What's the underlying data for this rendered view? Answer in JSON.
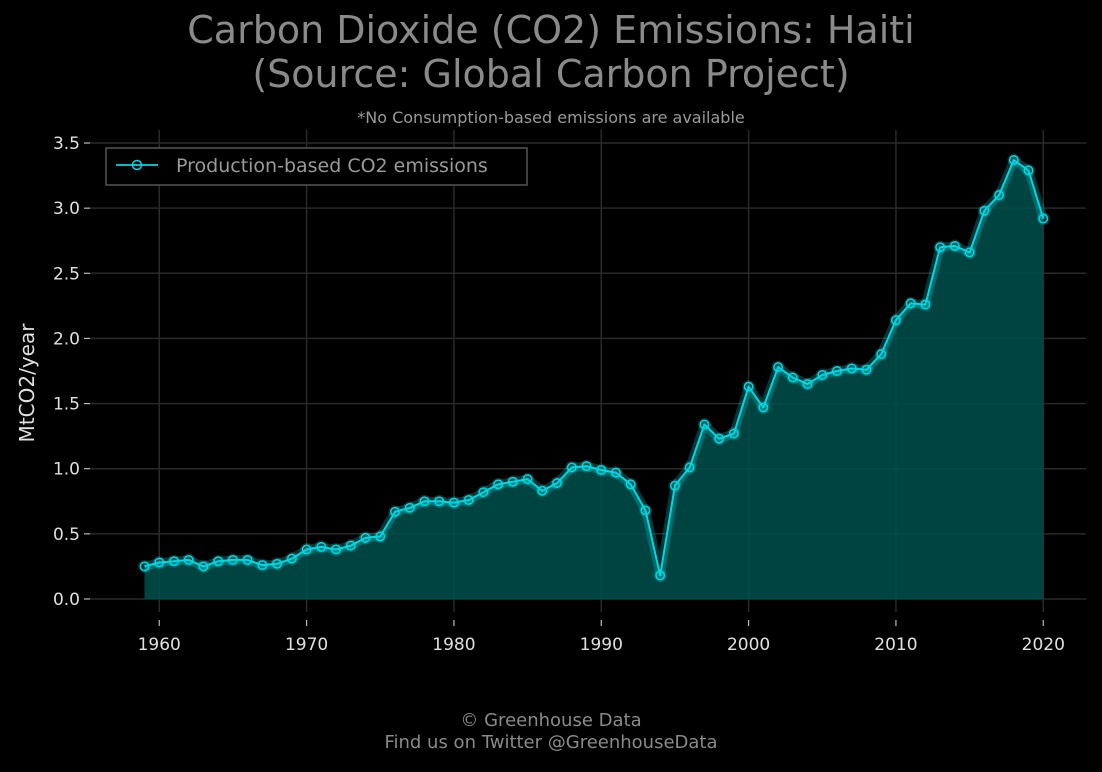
{
  "chart_data": {
    "type": "area",
    "title_line1": "Carbon Dioxide (CO2) Emissions: Haiti",
    "title_line2": "(Source: Global Carbon Project)",
    "subtitle": "*No Consumption-based emissions are available",
    "xlabel": "",
    "ylabel": "MtCO2/year",
    "xlim": [
      1955.3,
      2022.9
    ],
    "ylim": [
      -0.1,
      3.6
    ],
    "xticks": [
      1960,
      1970,
      1980,
      1990,
      2000,
      2010,
      2020
    ],
    "xtick_labels": [
      "1960",
      "1970",
      "1980",
      "1990",
      "2000",
      "2010",
      "2020"
    ],
    "yticks": [
      0.0,
      0.5,
      1.0,
      1.5,
      2.0,
      2.5,
      3.0,
      3.5
    ],
    "ytick_labels": [
      "0.0",
      "0.5",
      "1.0",
      "1.5",
      "2.0",
      "2.5",
      "3.0",
      "3.5"
    ],
    "grid": true,
    "legend_position": "top-left",
    "colors": {
      "line": "#00d8e0",
      "fill": "#00504e",
      "grid": "#2a2a2a",
      "background": "#000000"
    },
    "series": [
      {
        "name": "Production-based CO2 emissions",
        "x": [
          1959,
          1960,
          1961,
          1962,
          1963,
          1964,
          1965,
          1966,
          1967,
          1968,
          1969,
          1970,
          1971,
          1972,
          1973,
          1974,
          1975,
          1976,
          1977,
          1978,
          1979,
          1980,
          1981,
          1982,
          1983,
          1984,
          1985,
          1986,
          1987,
          1988,
          1989,
          1990,
          1991,
          1992,
          1993,
          1994,
          1995,
          1996,
          1997,
          1998,
          1999,
          2000,
          2001,
          2002,
          2003,
          2004,
          2005,
          2006,
          2007,
          2008,
          2009,
          2010,
          2011,
          2012,
          2013,
          2014,
          2015,
          2016,
          2017,
          2018,
          2019,
          2020
        ],
        "y": [
          0.25,
          0.28,
          0.29,
          0.3,
          0.25,
          0.29,
          0.3,
          0.3,
          0.26,
          0.27,
          0.31,
          0.38,
          0.4,
          0.38,
          0.41,
          0.47,
          0.48,
          0.67,
          0.7,
          0.75,
          0.75,
          0.74,
          0.76,
          0.82,
          0.88,
          0.9,
          0.92,
          0.83,
          0.89,
          1.01,
          1.02,
          0.99,
          0.97,
          0.88,
          0.68,
          0.18,
          0.87,
          1.01,
          1.34,
          1.23,
          1.27,
          1.63,
          1.47,
          1.78,
          1.7,
          1.65,
          1.72,
          1.75,
          1.77,
          1.76,
          1.88,
          2.14,
          2.27,
          2.26,
          2.7,
          2.71,
          2.66,
          2.98,
          3.1,
          3.37,
          3.29,
          2.92
        ]
      }
    ]
  },
  "footer": {
    "line1": "© Greenhouse Data",
    "line2": "Find us on Twitter @GreenhouseData"
  }
}
